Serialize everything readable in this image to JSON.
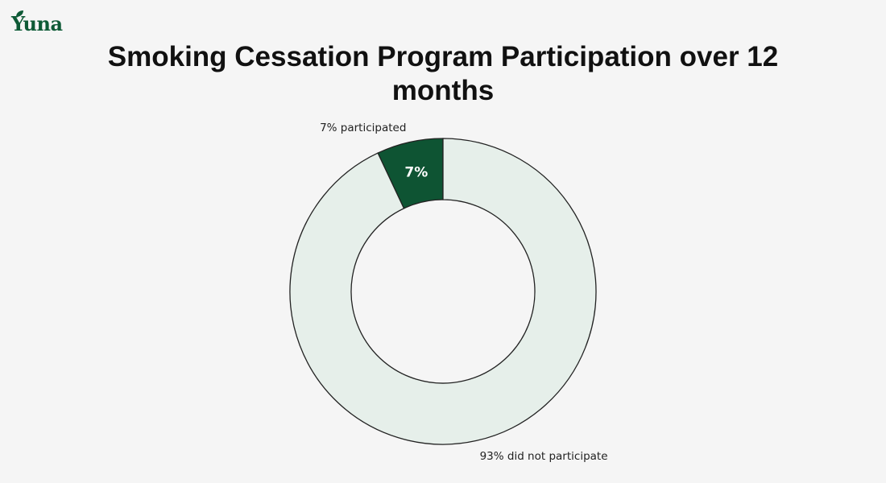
{
  "brand": {
    "logo_text": "Yuna",
    "logo_icon": "leaf-icon",
    "color": "#0e5a36"
  },
  "chart_data": {
    "type": "pie",
    "style": "donut",
    "title": "Smoking Cessation Program Participation over 12 months",
    "slices": [
      {
        "label": "7% participated",
        "value": 7,
        "inner_label": "7%",
        "color": "#0e5433"
      },
      {
        "label": "93% did not participate",
        "value": 93,
        "inner_label": "",
        "color": "#e6efea"
      }
    ],
    "start_angle_deg": 90,
    "direction": "counterclockwise"
  }
}
